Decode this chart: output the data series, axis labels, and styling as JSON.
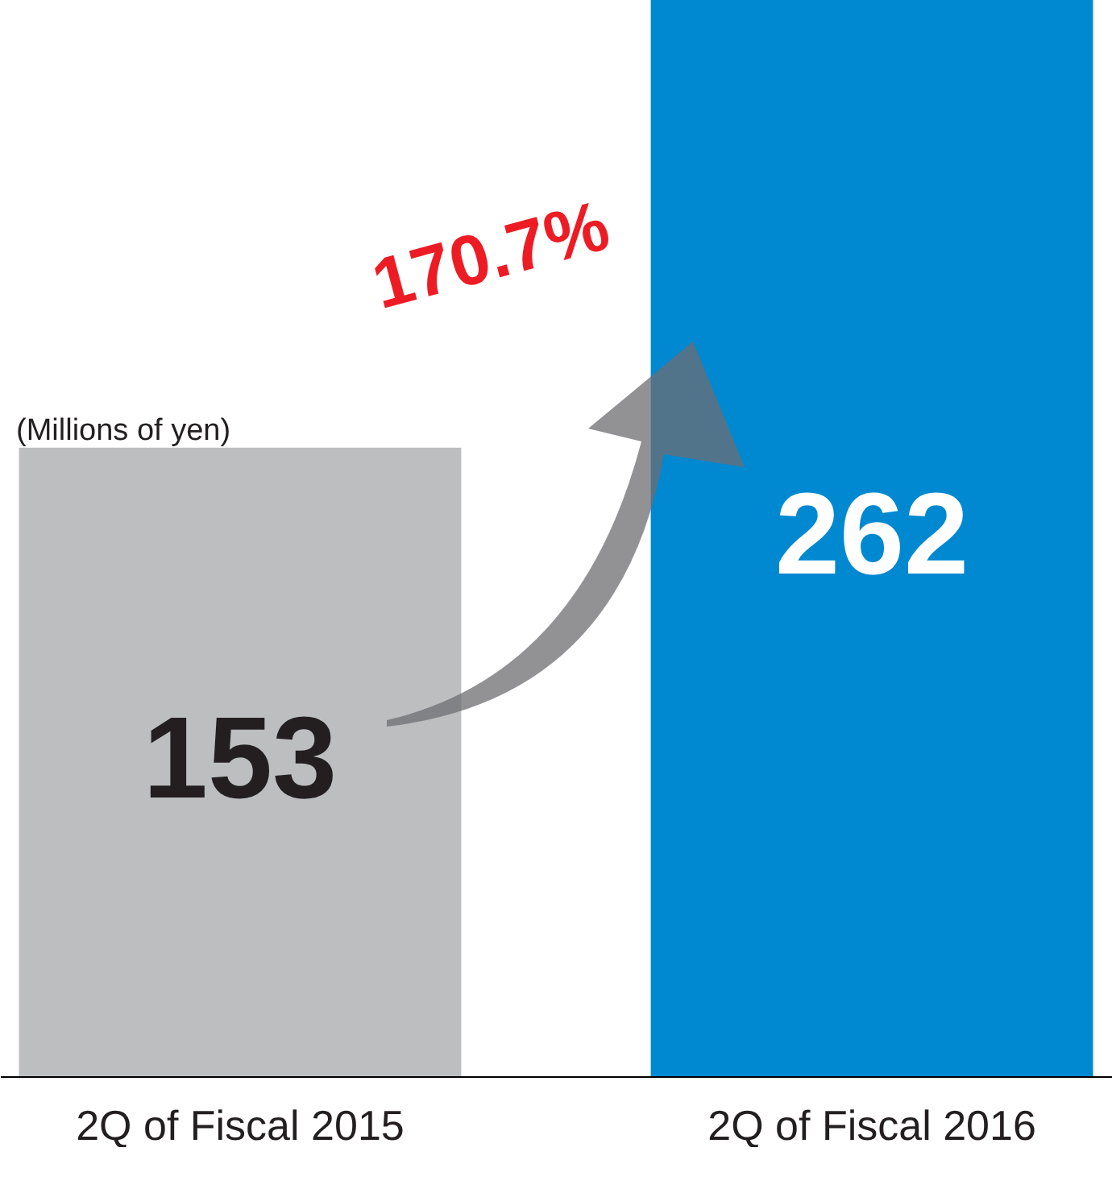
{
  "chart_data": {
    "type": "bar",
    "categories": [
      "2Q of Fiscal 2015",
      "2Q of Fiscal 2016"
    ],
    "values": [
      153,
      262
    ],
    "colors": [
      "#bcbec0",
      "#0088d1"
    ],
    "data_labels": true,
    "ylabel": "(Millions of yen)",
    "annotations": [
      "170.7%"
    ]
  }
}
